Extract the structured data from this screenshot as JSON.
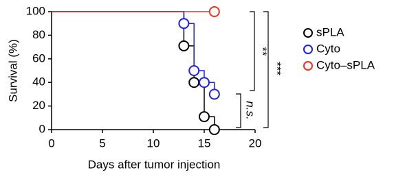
{
  "chart_data": {
    "type": "step",
    "xlabel": "Days after tumor injection",
    "ylabel": "Survival (%)",
    "xlim": [
      0,
      20
    ],
    "xticks": [
      0,
      5,
      10,
      15,
      20
    ],
    "ylim": [
      0,
      100
    ],
    "yticks": [
      0,
      20,
      40,
      60,
      80,
      100
    ],
    "series": [
      {
        "name": "sPLA",
        "color": "#000000",
        "x": [
          0,
          13,
          14,
          15,
          16
        ],
        "values": [
          100,
          71,
          40,
          11,
          0
        ]
      },
      {
        "name": "Cyto",
        "color": "#1f1fe6",
        "x": [
          0,
          13,
          14,
          15,
          16
        ],
        "values": [
          100,
          90,
          50,
          40,
          30
        ]
      },
      {
        "name": "Cyto–sPLA",
        "color": "#ff2a1a",
        "x": [
          0,
          16
        ],
        "values": [
          100,
          100
        ]
      }
    ],
    "annotations": [
      "n.s.",
      "**",
      "***"
    ]
  }
}
